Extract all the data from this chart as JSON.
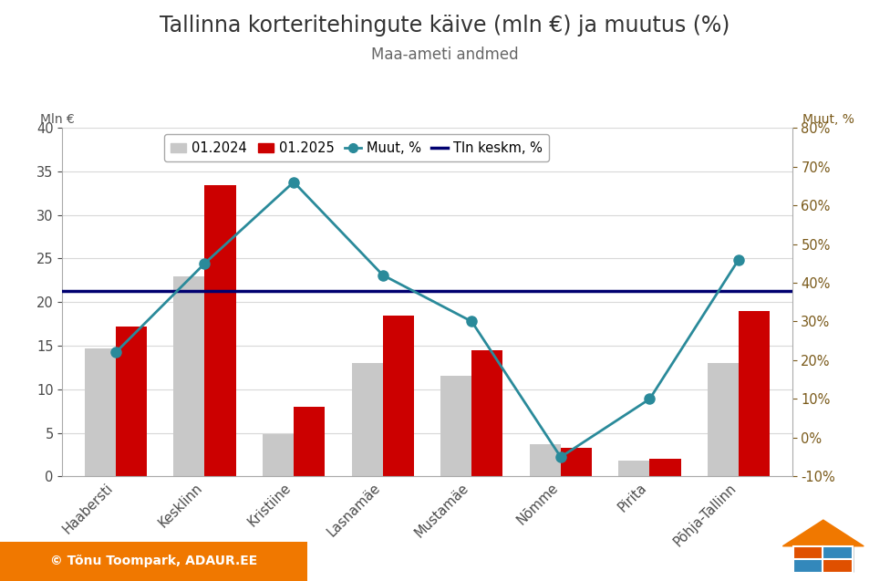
{
  "title": "Tallinna korteritehingute käive (mln €) ja muutus (%)",
  "subtitle": "Maa-ameti andmed",
  "ylabel_left": "Mln €",
  "ylabel_right": "Muut, %",
  "categories": [
    "Haabersti",
    "Kesklinn",
    "Kristiine",
    "Lasnamäe",
    "Mustamäe",
    "Nõmme",
    "Pirita",
    "Põhja-Tallinn"
  ],
  "values_2024": [
    14.7,
    23.0,
    4.8,
    13.0,
    11.5,
    3.7,
    1.8,
    13.0
  ],
  "values_2025": [
    17.2,
    33.4,
    8.0,
    18.5,
    14.5,
    3.3,
    2.0,
    19.0
  ],
  "muutus_pct": [
    22.0,
    45.0,
    66.0,
    42.0,
    30.0,
    -5.0,
    10.0,
    46.0
  ],
  "tln_keskm_pct": 38.0,
  "color_2024": "#c8c8c8",
  "color_2025": "#cc0000",
  "color_muutus": "#2a8a9a",
  "color_tln_keskm": "#000070",
  "legend_2024": "01.2024",
  "legend_2025": "01.2025",
  "legend_muutus": "Muut, %",
  "legend_tln_keskm": "Tln keskm, %",
  "ylim_left": [
    0,
    40
  ],
  "ylim_right": [
    -10,
    80
  ],
  "right_ticks": [
    -10,
    0,
    10,
    20,
    30,
    40,
    50,
    60,
    70,
    80
  ],
  "left_ticks": [
    0,
    5,
    10,
    15,
    20,
    25,
    30,
    35,
    40
  ],
  "background_color": "#ffffff",
  "title_fontsize": 17,
  "subtitle_fontsize": 12,
  "tick_fontsize": 10.5,
  "legend_fontsize": 10.5,
  "watermark_text": "© Tõnu Toompark, ADAUR.EE",
  "watermark_bg": "#f07800",
  "watermark_color": "#ffffff"
}
